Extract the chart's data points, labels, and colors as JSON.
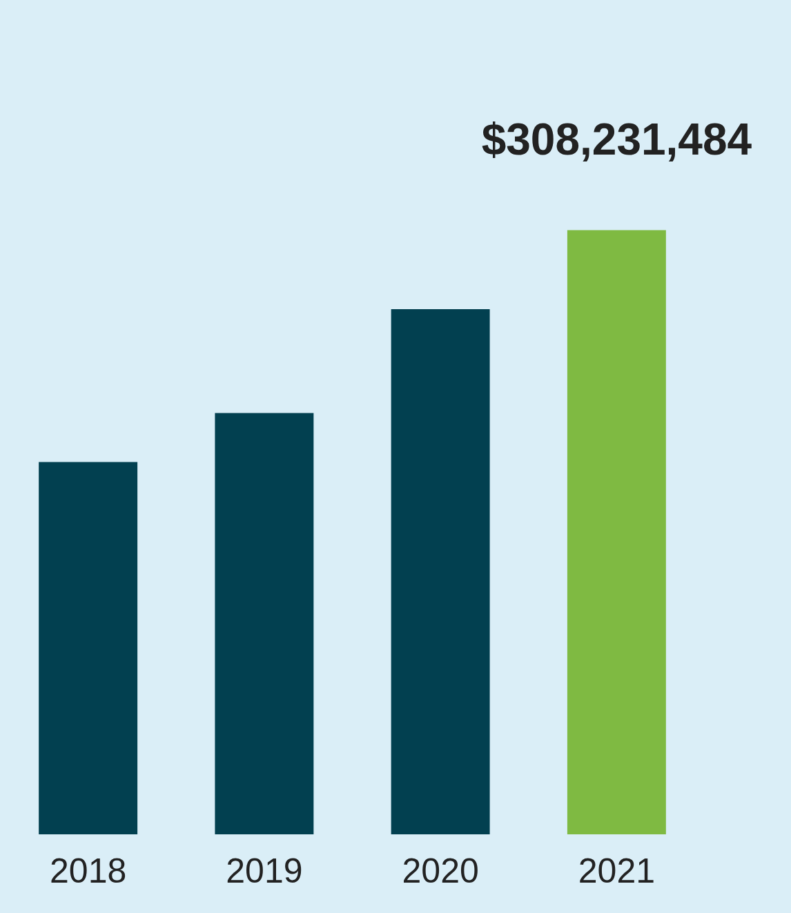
{
  "chart_data": {
    "type": "bar",
    "categories": [
      "2018",
      "2019",
      "2020",
      "2021"
    ],
    "values": [
      190000000,
      215000000,
      268000000,
      308231484
    ],
    "colors": [
      "#024050",
      "#024050",
      "#024050",
      "#7fba42"
    ],
    "value_labels": [
      null,
      null,
      null,
      "$308,231,484"
    ]
  }
}
